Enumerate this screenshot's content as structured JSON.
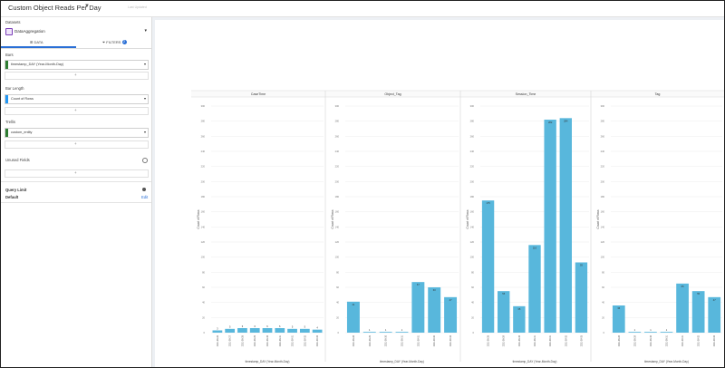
{
  "app": {
    "title": "Custom Object Reads Per Day",
    "topbar_faint": "Last Updated"
  },
  "sidebar": {
    "datasets_label": "Datasets",
    "dataset_name": "DataAggregation",
    "tab_data": "⊞ DATA",
    "tab_filters": "⏷ FILTERS",
    "filter_count": "2",
    "sections": [
      {
        "label": "Bars",
        "field": "timestamp_DAY (Year-Month-Day)",
        "color": "#2e7d32"
      },
      {
        "label": "Bar Length",
        "field": "Count of Rows",
        "color": "#2196f3"
      },
      {
        "label": "Trellis",
        "field": "custom_entity",
        "color": "#2e7d32"
      }
    ],
    "unused_label": "Unused Fields",
    "query_limit_label": "Query Limit",
    "default_label": "Default",
    "edit_label": "Edit",
    "plus": "+"
  },
  "chart_data": [
    {
      "type": "bar",
      "title": "CaseTime",
      "xlabel": "timestamp_DAY (Year-Month-Day)",
      "ylabel": "Count of Rows",
      "ylim": [
        0,
        300
      ],
      "yticks": [
        0,
        20,
        40,
        60,
        80,
        100,
        120,
        140,
        160,
        180,
        200,
        220,
        240,
        260,
        280,
        300
      ],
      "categories": [
        "2021-08-26",
        "2021-08-27",
        "2021-08-28",
        "2021-08-29",
        "2021-08-30",
        "2021-08-31",
        "2021-09-01",
        "2021-09-02",
        "2021-09-03"
      ],
      "values": [
        3,
        5,
        6,
        6,
        6,
        6,
        5,
        5,
        4
      ]
    },
    {
      "type": "bar",
      "title": "Object_Tag",
      "xlabel": "timestamp_DAY (Year-Month-Day)",
      "ylabel": "Count of Rows",
      "ylim": [
        0,
        300
      ],
      "yticks": [
        0,
        20,
        40,
        60,
        80,
        100,
        120,
        140,
        160,
        180,
        200,
        220,
        240,
        260,
        280,
        300
      ],
      "categories": [
        "2021-08-28",
        "2021-08-29",
        "2021-08-30",
        "2021-08-31",
        "2021-09-01",
        "2021-09-02",
        "2021-09-03"
      ],
      "values": [
        41,
        1,
        1,
        1,
        67,
        60,
        47
      ]
    },
    {
      "type": "bar",
      "title": "Session_Time",
      "xlabel": "timestamp_DAY (Year-Month-Day)",
      "ylabel": "Count of Rows",
      "ylim": [
        0,
        300
      ],
      "yticks": [
        0,
        20,
        40,
        60,
        80,
        100,
        120,
        140,
        160,
        180,
        200,
        220,
        240,
        260,
        280,
        300
      ],
      "categories": [
        "2021-08-28",
        "2021-08-29",
        "2021-08-30",
        "2021-08-31",
        "2021-09-01",
        "2021-09-02",
        "2021-09-03"
      ],
      "values": [
        175,
        55,
        35,
        116,
        282,
        284,
        93
      ]
    },
    {
      "type": "bar",
      "title": "Tag",
      "xlabel": "timestamp_DAY (Year-Month-Day)",
      "ylabel": "Count of Rows",
      "ylim": [
        0,
        300
      ],
      "yticks": [
        0,
        20,
        40,
        60,
        80,
        100,
        120,
        140,
        160,
        180,
        200,
        220,
        240,
        260,
        280,
        300
      ],
      "categories": [
        "2021-08-28",
        "2021-08-29",
        "2021-08-30",
        "2021-08-31",
        "2021-09-01",
        "2021-09-02",
        "2021-09-03"
      ],
      "values": [
        36,
        1,
        1,
        1,
        65,
        55,
        47
      ]
    }
  ],
  "colors": {
    "bar": "#58b7dc",
    "accent": "#2a6fd6"
  }
}
